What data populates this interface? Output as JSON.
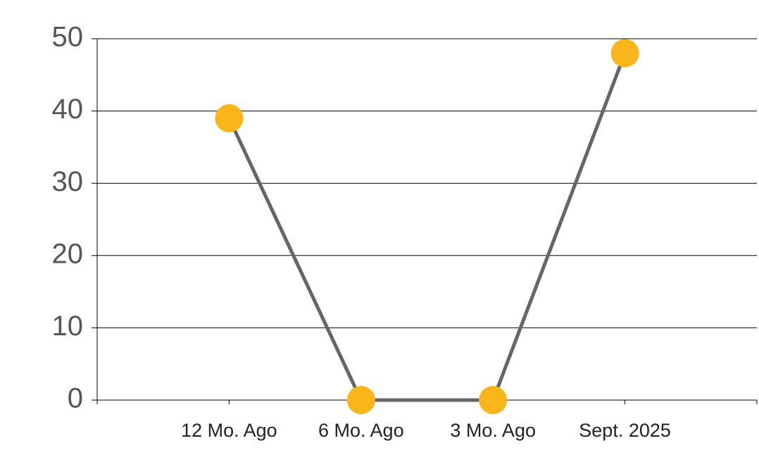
{
  "chart_data": {
    "type": "line",
    "categories": [
      "12 Mo. Ago",
      "6 Mo. Ago",
      "3 Mo. Ago",
      "Sept. 2025"
    ],
    "series": [
      {
        "values": [
          39,
          0,
          0,
          48
        ],
        "color": "#666666",
        "marker_color": "#f9b51a"
      }
    ],
    "ylim": [
      0,
      50
    ],
    "yticks": [
      0,
      10,
      20,
      30,
      40,
      50
    ],
    "grid": true
  }
}
